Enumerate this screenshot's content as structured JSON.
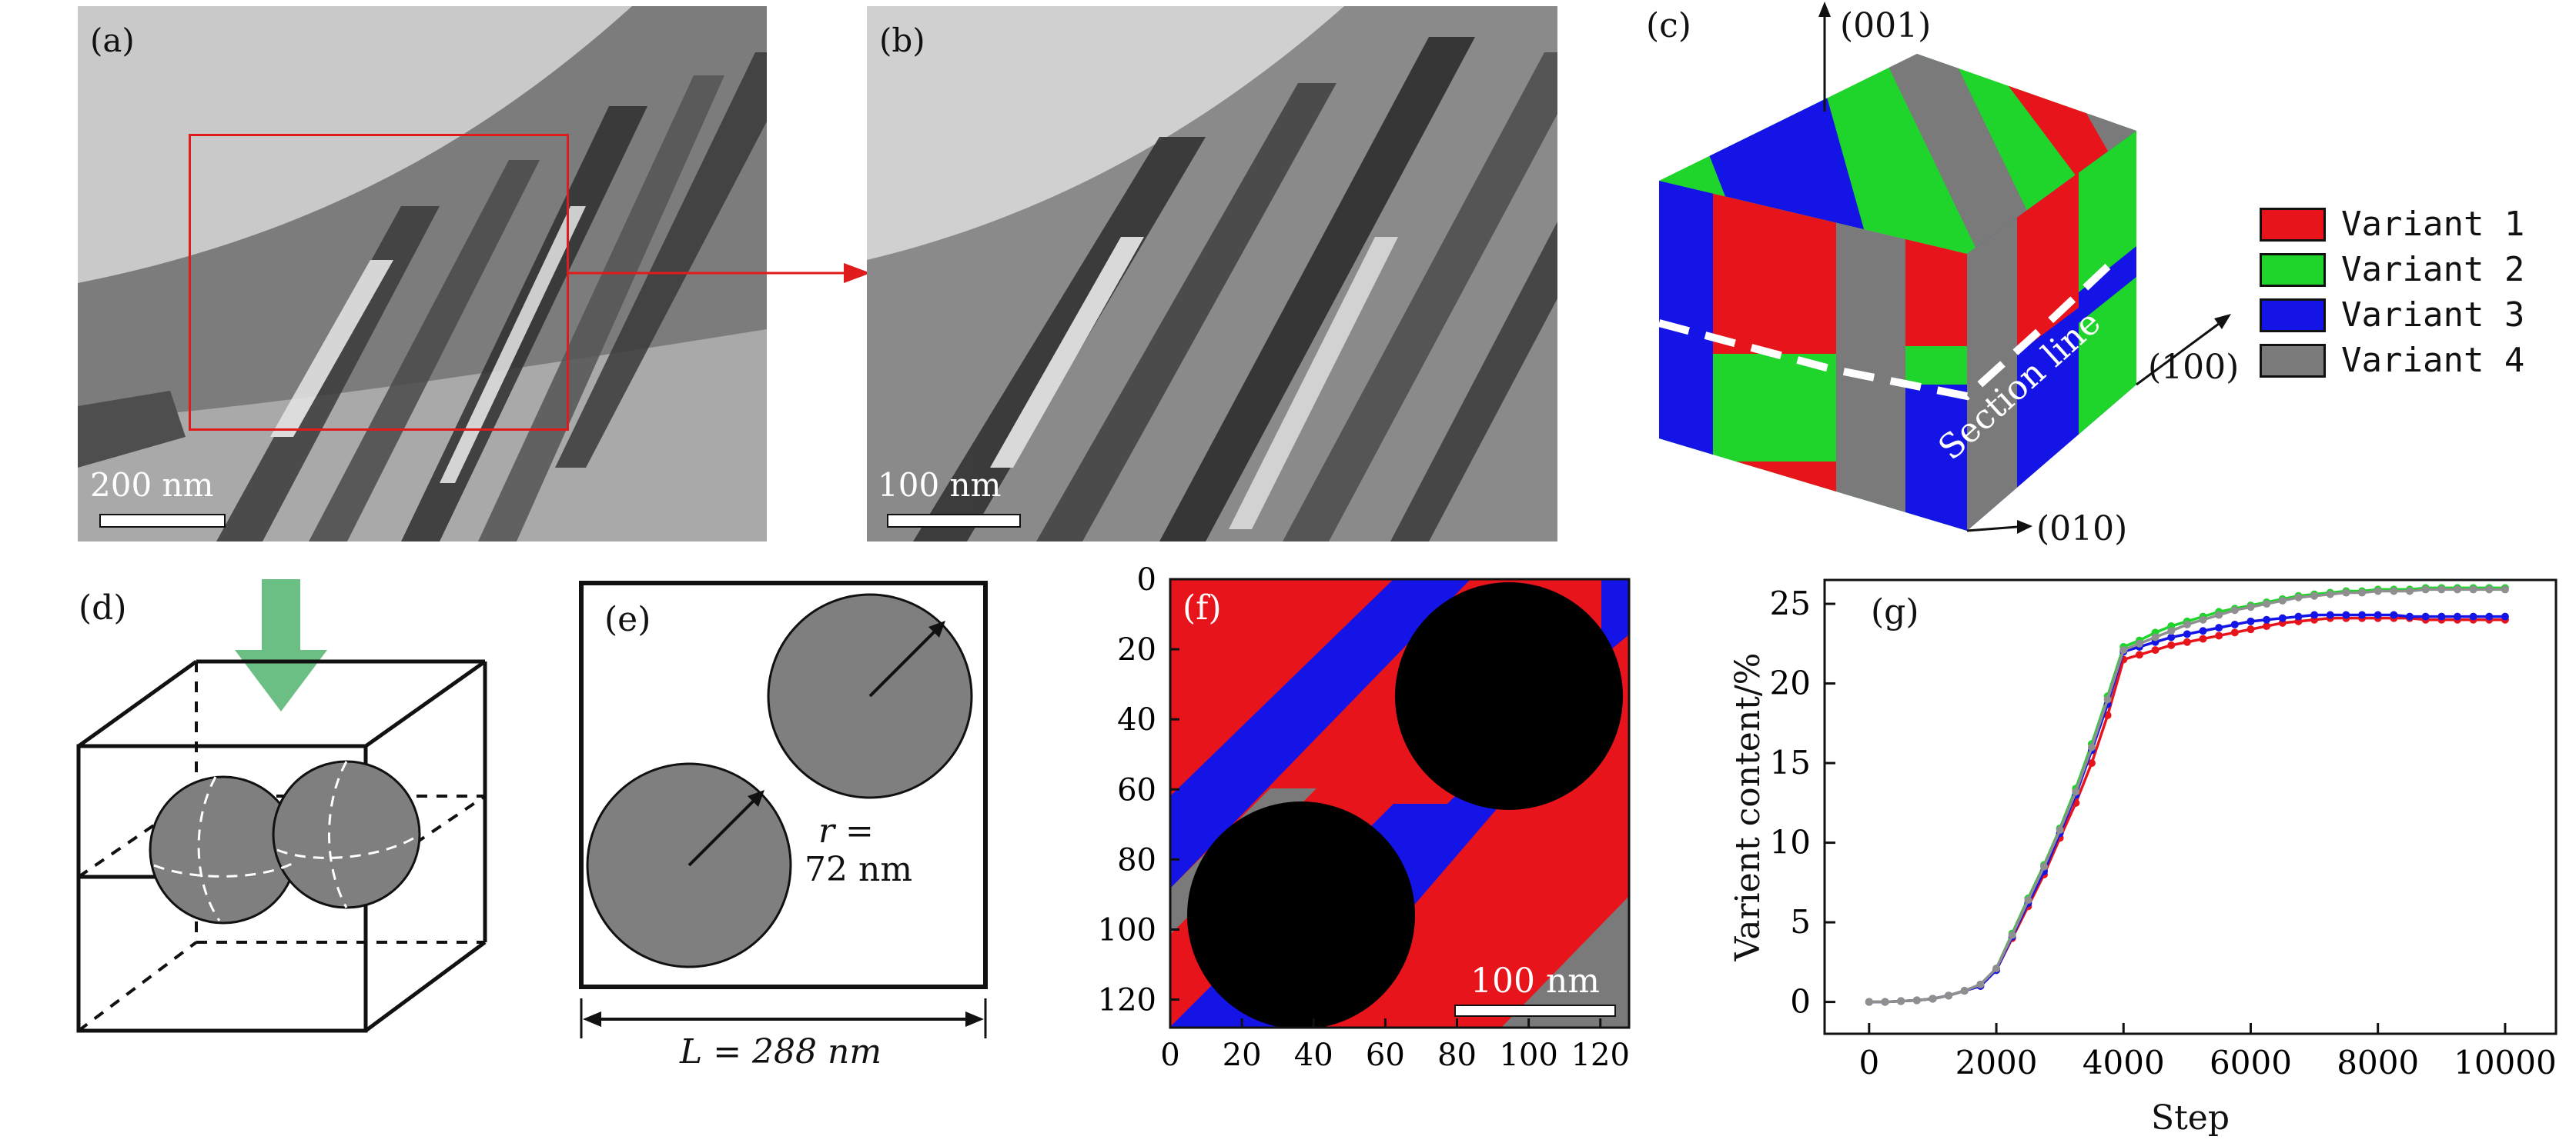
{
  "panels": {
    "a": {
      "label": "(a)",
      "scale": "200 nm"
    },
    "b": {
      "label": "(b)",
      "scale": "100 nm"
    },
    "c": {
      "label": "(c)",
      "axis_001": "(001)",
      "axis_100": "(100)",
      "axis_010": "(010)",
      "section": "Section line"
    },
    "d": {
      "label": "(d)"
    },
    "e": {
      "label": "(e)",
      "r_text_1": "r =",
      "r_text_2": "72 nm",
      "L_text": "L = 288 nm"
    },
    "f": {
      "label": "(f)",
      "scale": "100 nm",
      "ticks": [
        "0",
        "20",
        "40",
        "60",
        "80",
        "100",
        "120"
      ]
    },
    "g": {
      "label": "(g)"
    }
  },
  "legend": [
    {
      "name": "Variant 1",
      "color": "#e8141b"
    },
    {
      "name": "Variant 2",
      "color": "#1fd42a"
    },
    {
      "name": "Variant 3",
      "color": "#1414e6"
    },
    {
      "name": "Variant 4",
      "color": "#7a7a7a"
    }
  ],
  "chart_data": {
    "type": "line",
    "title": "",
    "xlabel": "Step",
    "ylabel": "Varient content/%",
    "xlim": [
      -700,
      10800
    ],
    "ylim": [
      -2,
      26.5
    ],
    "xticks": [
      0,
      2000,
      4000,
      6000,
      8000,
      10000
    ],
    "yticks": [
      0,
      5,
      10,
      15,
      20,
      25
    ],
    "x": [
      0,
      250,
      500,
      750,
      1000,
      1250,
      1500,
      1750,
      2000,
      2250,
      2500,
      2750,
      3000,
      3250,
      3500,
      3750,
      4000,
      4250,
      4500,
      4750,
      5000,
      5250,
      5500,
      5750,
      6000,
      6250,
      6500,
      6750,
      7000,
      7250,
      7500,
      7750,
      8000,
      8250,
      8500,
      8750,
      9000,
      9250,
      9500,
      9750,
      10000
    ],
    "series": [
      {
        "color": "#e8141b",
        "values": [
          0,
          0,
          0.05,
          0.1,
          0.2,
          0.4,
          0.7,
          1.0,
          2.0,
          4.0,
          6.0,
          8.0,
          10.3,
          12.5,
          15.0,
          18.0,
          21.5,
          21.8,
          22.1,
          22.4,
          22.6,
          22.8,
          23.0,
          23.2,
          23.4,
          23.6,
          23.8,
          23.9,
          24.0,
          24.1,
          24.1,
          24.1,
          24.1,
          24.1,
          24.1,
          24.0,
          24.0,
          24.0,
          24.0,
          24.0,
          24.0
        ]
      },
      {
        "color": "#1fd42a",
        "values": [
          0,
          0,
          0.05,
          0.1,
          0.2,
          0.4,
          0.7,
          1.1,
          2.1,
          4.3,
          6.5,
          8.6,
          10.9,
          13.4,
          16.2,
          19.2,
          22.3,
          22.7,
          23.2,
          23.6,
          23.9,
          24.2,
          24.5,
          24.7,
          24.9,
          25.1,
          25.3,
          25.5,
          25.6,
          25.7,
          25.8,
          25.8,
          25.9,
          25.9,
          25.9,
          26.0,
          26.0,
          26.0,
          26.0,
          26.0,
          26.0
        ]
      },
      {
        "color": "#1414e6",
        "values": [
          0,
          0,
          0.05,
          0.1,
          0.2,
          0.4,
          0.7,
          1.0,
          2.0,
          4.1,
          6.2,
          8.2,
          10.6,
          13.0,
          15.8,
          18.7,
          22.0,
          22.3,
          22.6,
          22.9,
          23.1,
          23.3,
          23.5,
          23.7,
          23.9,
          24.0,
          24.1,
          24.2,
          24.3,
          24.3,
          24.3,
          24.3,
          24.3,
          24.3,
          24.2,
          24.2,
          24.2,
          24.2,
          24.2,
          24.2,
          24.2
        ]
      },
      {
        "color": "#8f8f8f",
        "values": [
          0,
          0,
          0.05,
          0.1,
          0.2,
          0.4,
          0.7,
          1.1,
          2.1,
          4.2,
          6.4,
          8.5,
          10.8,
          13.2,
          16.0,
          19.0,
          22.1,
          22.5,
          22.9,
          23.3,
          23.7,
          24.0,
          24.3,
          24.6,
          24.8,
          25.0,
          25.2,
          25.4,
          25.5,
          25.6,
          25.7,
          25.7,
          25.8,
          25.8,
          25.8,
          25.9,
          25.9,
          25.9,
          25.9,
          25.9,
          25.9
        ]
      }
    ]
  }
}
